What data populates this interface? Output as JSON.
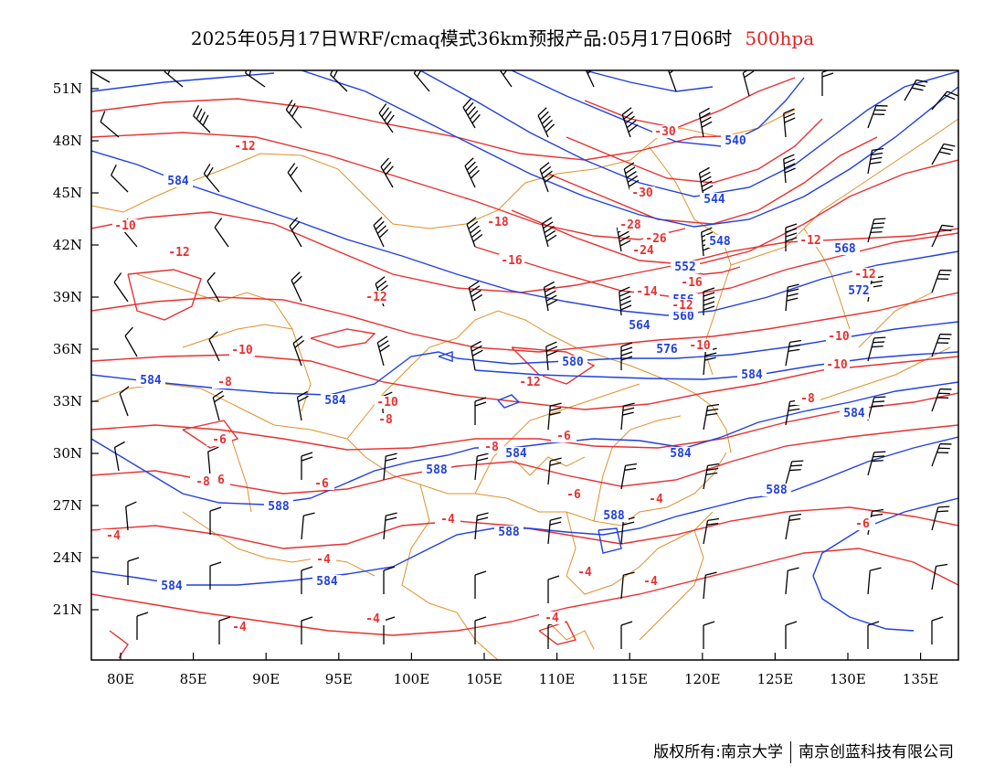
{
  "title": {
    "main": "2025年05月17日WRF/cmaq模式36km预报产品:05月17日06时",
    "level": "500hpa"
  },
  "footer": {
    "copyright": "版权所有:南京大学",
    "company": "南京创蓝科技有限公司"
  },
  "colors": {
    "geopotential": "#2040e0",
    "temperature": "#e83030",
    "border": "#e0902a",
    "wind": "#000000"
  },
  "axes": {
    "x_ticks": [
      "80E",
      "85E",
      "90E",
      "95E",
      "100E",
      "105E",
      "110E",
      "115E",
      "120E",
      "125E",
      "130E",
      "135E"
    ],
    "y_ticks": [
      "51N",
      "48N",
      "45N",
      "42N",
      "39N",
      "36N",
      "33N",
      "30N",
      "27N",
      "24N",
      "21N"
    ]
  },
  "geopotential_labels": [
    "584",
    "540",
    "544",
    "548",
    "568",
    "572",
    "552",
    "556",
    "560",
    "564",
    "576",
    "580",
    "584",
    "584",
    "584",
    "584",
    "584",
    "584",
    "588",
    "588",
    "588",
    "588",
    "588",
    "584",
    "584"
  ],
  "temperature_labels": [
    "-12",
    "-10",
    "-12",
    "-12",
    "-10",
    "-8",
    "-8",
    "-6",
    "-6",
    "-8",
    "-6",
    "-4",
    "-4",
    "-4",
    "-4",
    "-4",
    "-4",
    "-4",
    "-4",
    "-6",
    "-6",
    "-8",
    "-10",
    "-12",
    "-30",
    "-30",
    "-28",
    "-26",
    "-24",
    "-18",
    "-16",
    "-14",
    "-16",
    "-12",
    "-10",
    "-12",
    "-10",
    "-12",
    "-10",
    "-8",
    "-6",
    "-4"
  ]
}
